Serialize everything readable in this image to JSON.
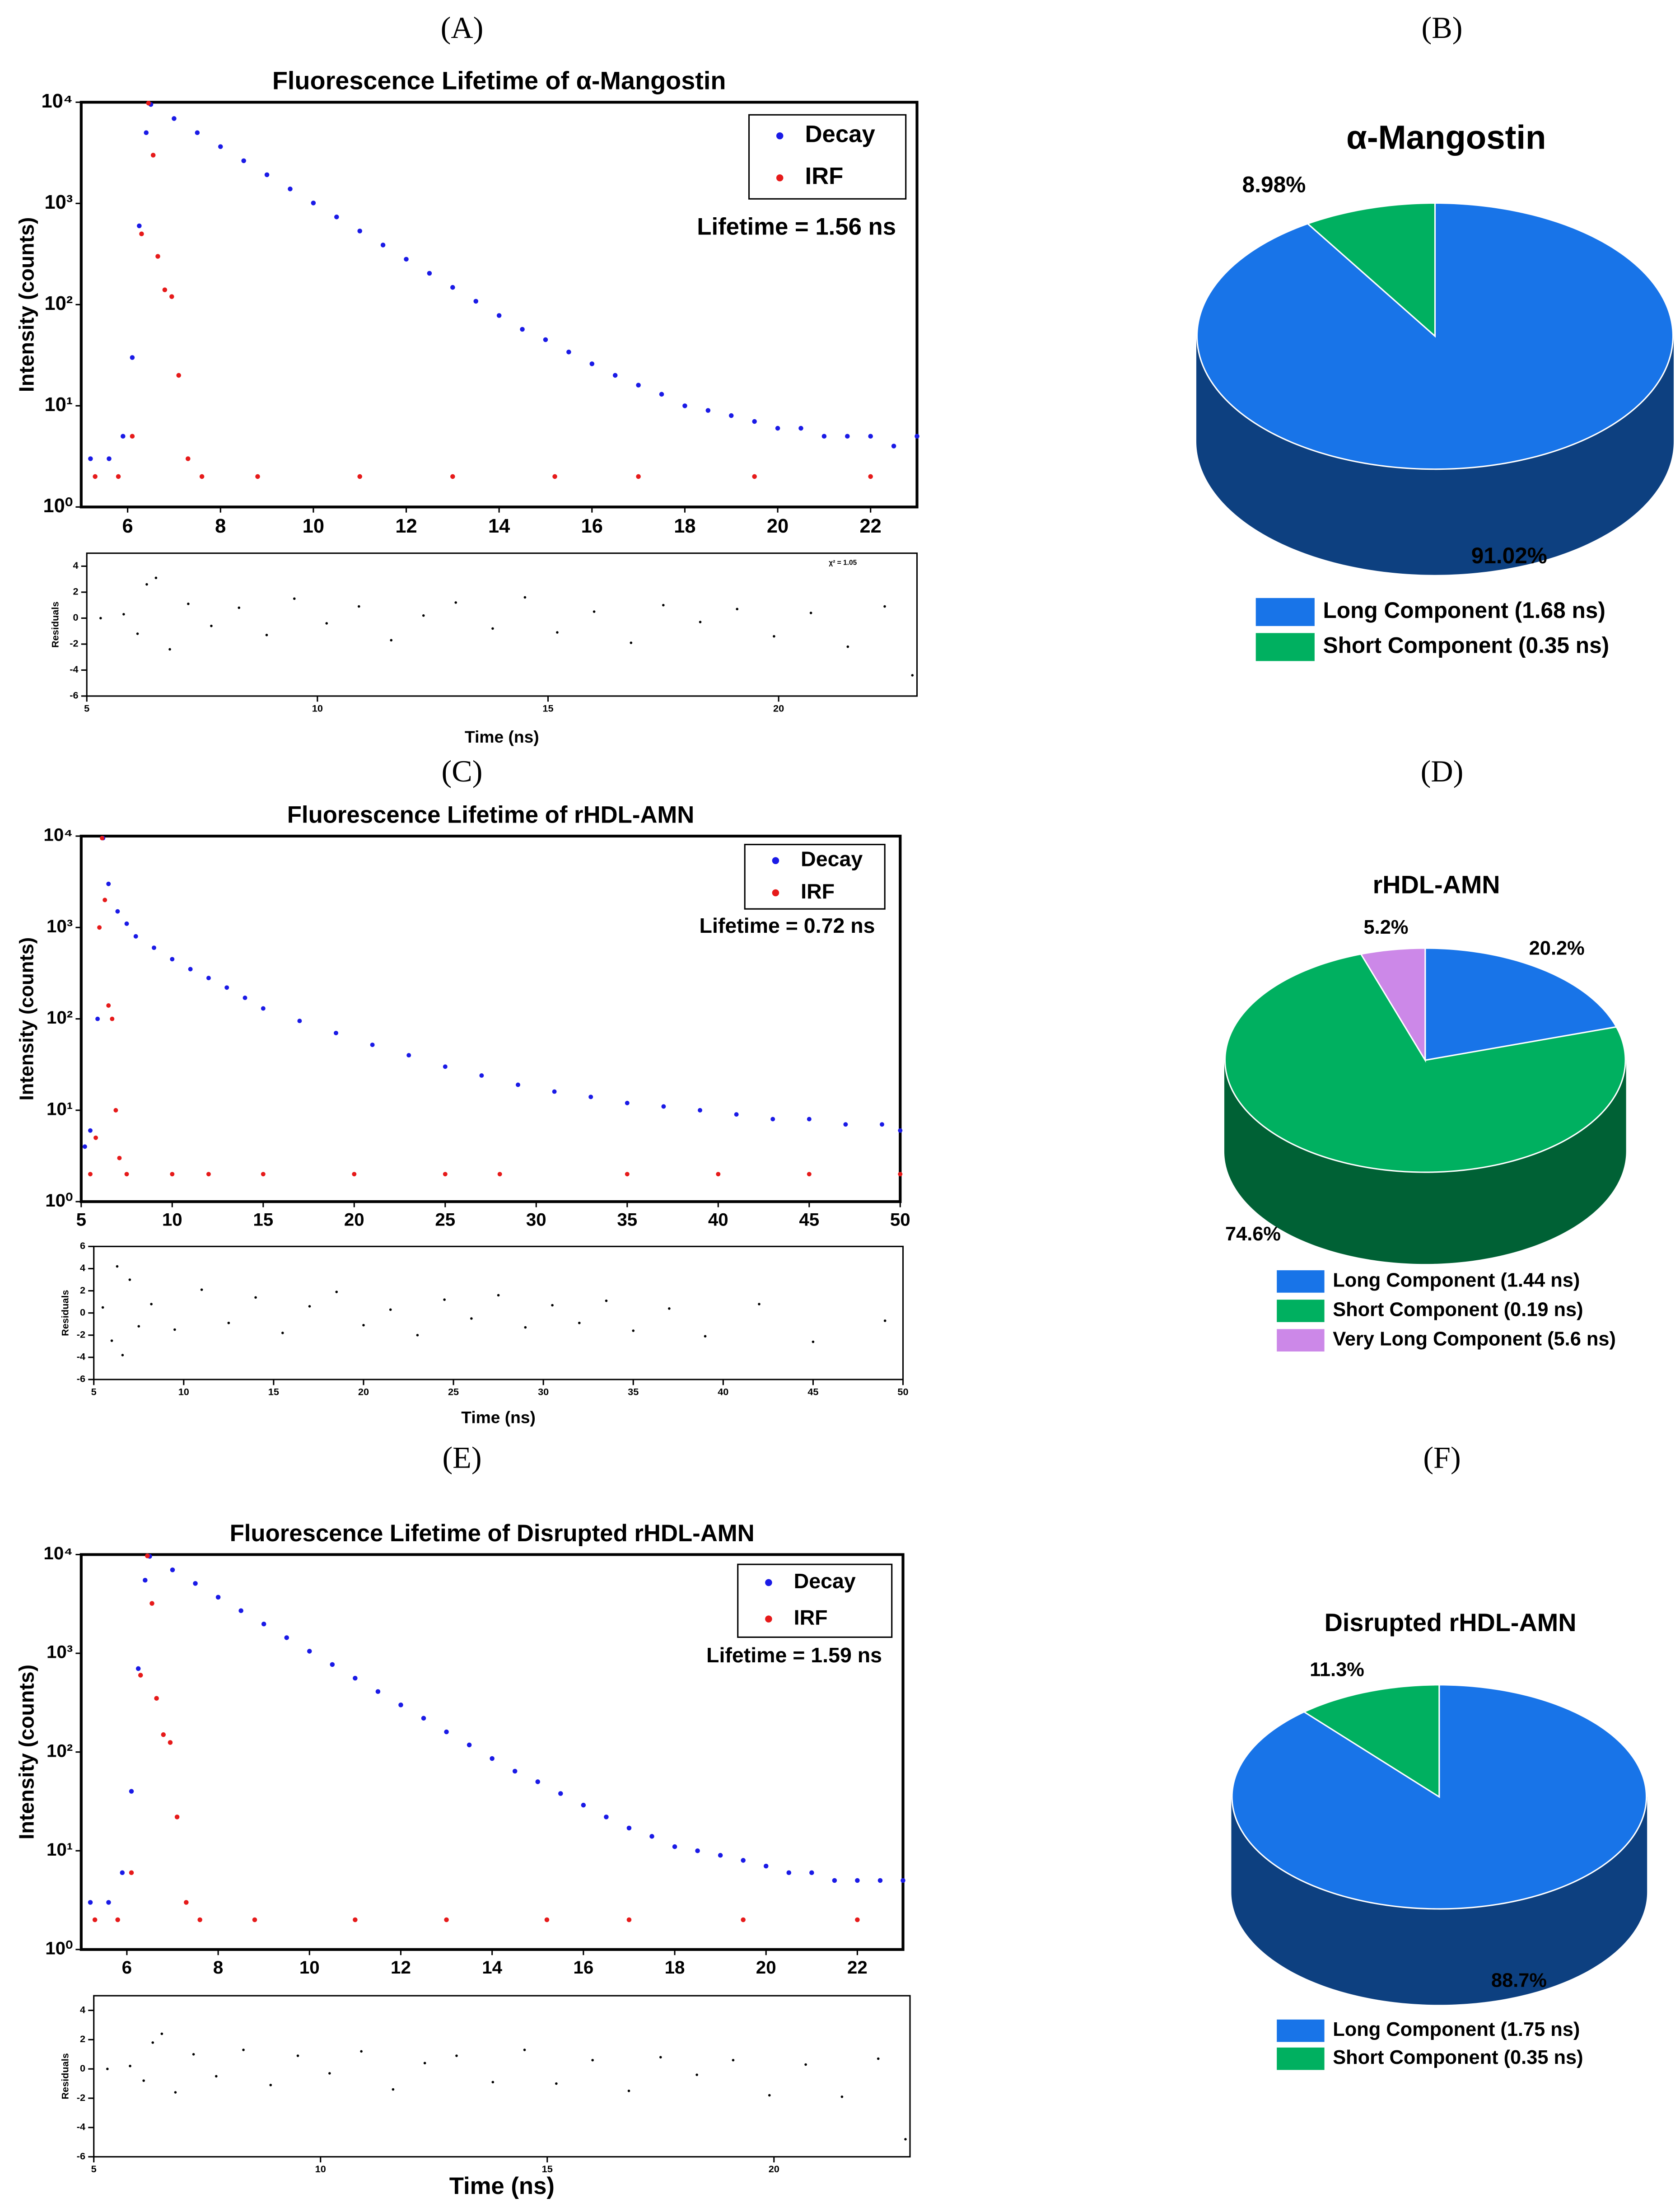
{
  "chart_data": [
    {
      "type": "scatter",
      "panel_label": "(A)",
      "title": "Fluorescence Lifetime of α-Mangostin",
      "y_label": "Intensity (counts)",
      "log_y": true,
      "xlim": [
        5,
        23
      ],
      "xticks": [
        6,
        8,
        10,
        12,
        14,
        16,
        18,
        20,
        22
      ],
      "ylim": [
        1,
        10000
      ],
      "yticks": [
        {
          "value": 1,
          "label": "10⁰"
        },
        {
          "value": 10,
          "label": "10¹"
        },
        {
          "value": 100,
          "label": "10²"
        },
        {
          "value": 1000,
          "label": "10³"
        },
        {
          "value": 10000,
          "label": "10⁴"
        }
      ],
      "legend": "upper right",
      "annotation": "Lifetime = 1.56 ns",
      "series": [
        {
          "name": "Decay",
          "color": "#1a1ae6",
          "x": [
            5.2,
            5.6,
            5.9,
            6.1,
            6.25,
            6.4,
            6.5,
            7,
            7.5,
            8,
            8.5,
            9,
            9.5,
            10,
            10.5,
            11,
            11.5,
            12,
            12.5,
            13,
            13.5,
            14,
            14.5,
            15,
            15.5,
            16,
            16.5,
            17,
            17.5,
            18,
            18.5,
            19,
            19.5,
            20,
            20.5,
            21,
            21.5,
            22,
            22.5,
            23
          ],
          "values": [
            3,
            3,
            5,
            30,
            600,
            5000,
            9500,
            6900,
            5000,
            3640,
            2640,
            1920,
            1390,
            1010,
            735,
            534,
            388,
            281,
            204,
            148,
            108,
            78,
            57,
            45,
            34,
            26,
            20,
            16,
            13,
            10,
            9,
            8,
            7,
            6,
            6,
            5,
            5,
            5,
            4,
            5
          ]
        },
        {
          "name": "IRF",
          "color": "#e61a1a",
          "x": [
            5.3,
            5.8,
            6.1,
            6.3,
            6.45,
            6.55,
            6.65,
            6.8,
            6.95,
            7.1,
            7.3,
            7.6,
            8.8,
            11,
            13,
            15.2,
            17,
            19.5,
            22
          ],
          "values": [
            2,
            2,
            5,
            500,
            9800,
            3000,
            300,
            140,
            120,
            20,
            3,
            2,
            2,
            2,
            2,
            2,
            2,
            2,
            2
          ]
        }
      ]
    },
    {
      "type": "scatter",
      "y_label": "Residuals",
      "x_label": "Time (ns)",
      "annotation": "χ² = 1.05",
      "xlim": [
        5,
        23
      ],
      "xticks": [
        5,
        10,
        15,
        20
      ],
      "ylim": [
        -6,
        5
      ],
      "yticks": [
        -6,
        -4,
        -2,
        0,
        2,
        4
      ],
      "color": "#000000",
      "x": [
        5.3,
        5.8,
        6.1,
        6.3,
        6.5,
        6.8,
        7.2,
        7.7,
        8.3,
        8.9,
        9.5,
        10.2,
        10.9,
        11.6,
        12.3,
        13.0,
        13.8,
        14.5,
        15.2,
        16.0,
        16.8,
        17.5,
        18.3,
        19.1,
        19.9,
        20.7,
        21.5,
        22.3,
        22.9
      ],
      "values": [
        0,
        0.3,
        -1.2,
        2.6,
        3.1,
        -2.4,
        1.1,
        -0.6,
        0.8,
        -1.3,
        1.5,
        -0.4,
        0.9,
        -1.7,
        0.2,
        1.2,
        -0.8,
        1.6,
        -1.1,
        0.5,
        -1.9,
        1.0,
        -0.3,
        0.7,
        -1.4,
        0.4,
        -2.2,
        0.9,
        -4.4
      ]
    },
    {
      "type": "pie",
      "panel_label": "(B)",
      "title": "α-Mangostin",
      "categories": [
        "Long Component (1.68 ns)",
        "Short Component (0.35 ns)"
      ],
      "values": [
        91.02,
        8.98
      ],
      "value_labels": [
        "91.02%",
        "8.98%"
      ],
      "colors": [
        "#1874e8",
        "#00b060"
      ]
    },
    {
      "type": "scatter",
      "panel_label": "(C)",
      "title": "Fluorescence Lifetime of rHDL-AMN",
      "y_label": "Intensity (counts)",
      "log_y": true,
      "xlim": [
        5,
        50
      ],
      "xticks": [
        5,
        10,
        15,
        20,
        25,
        30,
        35,
        40,
        45,
        50
      ],
      "ylim": [
        1,
        10000
      ],
      "yticks": [
        {
          "value": 1,
          "label": "10⁰"
        },
        {
          "value": 10,
          "label": "10¹"
        },
        {
          "value": 100,
          "label": "10²"
        },
        {
          "value": 1000,
          "label": "10³"
        },
        {
          "value": 10000,
          "label": "10⁴"
        }
      ],
      "legend": "upper right",
      "annotation": "Lifetime = 0.72 ns",
      "series": [
        {
          "name": "Decay",
          "color": "#1a1ae6",
          "x": [
            5.2,
            5.5,
            5.9,
            6.2,
            6.5,
            7,
            7.5,
            8,
            9,
            10,
            11,
            12,
            13,
            14,
            15,
            17,
            19,
            21,
            23,
            25,
            27,
            29,
            31,
            33,
            35,
            37,
            39,
            41,
            43,
            45,
            47,
            49,
            50
          ],
          "values": [
            4,
            6,
            100,
            9500,
            3000,
            1500,
            1100,
            800,
            600,
            450,
            350,
            280,
            220,
            170,
            130,
            95,
            70,
            52,
            40,
            30,
            24,
            19,
            16,
            14,
            12,
            11,
            10,
            9,
            8,
            8,
            7,
            7,
            6
          ]
        },
        {
          "name": "IRF",
          "color": "#e61a1a",
          "x": [
            5.5,
            5.8,
            6.0,
            6.15,
            6.3,
            6.5,
            6.7,
            6.9,
            7.1,
            7.5,
            10,
            12,
            15,
            20,
            25,
            28,
            35,
            40,
            45,
            50
          ],
          "values": [
            2,
            5,
            1000,
            9500,
            2000,
            140,
            100,
            10,
            3,
            2,
            2,
            2,
            2,
            2,
            2,
            2,
            2,
            2,
            2,
            2
          ]
        }
      ]
    },
    {
      "type": "scatter",
      "y_label": "Residuals",
      "x_label": "Time (ns)",
      "xlim": [
        5,
        50
      ],
      "xticks": [
        5,
        10,
        15,
        20,
        25,
        30,
        35,
        40,
        45,
        50
      ],
      "ylim": [
        -6,
        6
      ],
      "yticks": [
        -6,
        -4,
        -2,
        0,
        2,
        4,
        6
      ],
      "color": "#000000",
      "x": [
        5.5,
        6.0,
        6.3,
        6.6,
        7.0,
        7.5,
        8.2,
        9.5,
        11,
        12.5,
        14,
        15.5,
        17,
        18.5,
        20,
        21.5,
        23,
        24.5,
        26,
        27.5,
        29,
        30.5,
        32,
        33.5,
        35,
        37,
        39,
        42,
        45,
        49
      ],
      "values": [
        0.5,
        -2.5,
        4.2,
        -3.8,
        3.0,
        -1.2,
        0.8,
        -1.5,
        2.1,
        -0.9,
        1.4,
        -1.8,
        0.6,
        1.9,
        -1.1,
        0.3,
        -2.0,
        1.2,
        -0.5,
        1.6,
        -1.3,
        0.7,
        -0.9,
        1.1,
        -1.6,
        0.4,
        -2.1,
        0.8,
        -2.6,
        -0.7
      ]
    },
    {
      "type": "pie",
      "panel_label": "(D)",
      "title": "rHDL-AMN",
      "categories": [
        "Long Component (1.44 ns)",
        "Short Component (0.19 ns)",
        "Very Long Component (5.6 ns)"
      ],
      "values": [
        20.2,
        74.6,
        5.2
      ],
      "value_labels": [
        "20.2%",
        "74.6%",
        "5.2%"
      ],
      "colors": [
        "#1874e8",
        "#00b060",
        "#cc88e8"
      ]
    },
    {
      "type": "scatter",
      "panel_label": "(E)",
      "title": "Fluorescence Lifetime of Disrupted rHDL-AMN",
      "y_label": "Intensity (counts)",
      "log_y": true,
      "xlim": [
        5,
        23
      ],
      "xticks": [
        6,
        8,
        10,
        12,
        14,
        16,
        18,
        20,
        22
      ],
      "ylim": [
        1,
        10000
      ],
      "yticks": [
        {
          "value": 1,
          "label": "10⁰"
        },
        {
          "value": 10,
          "label": "10¹"
        },
        {
          "value": 100,
          "label": "10²"
        },
        {
          "value": 1000,
          "label": "10³"
        },
        {
          "value": 10000,
          "label": "10⁴"
        }
      ],
      "legend": "upper right",
      "annotation": "Lifetime = 1.59 ns",
      "series": [
        {
          "name": "Decay",
          "color": "#1a1ae6",
          "x": [
            5.2,
            5.6,
            5.9,
            6.1,
            6.25,
            6.4,
            6.5,
            7,
            7.5,
            8,
            8.5,
            9,
            9.5,
            10,
            10.5,
            11,
            11.5,
            12,
            12.5,
            13,
            13.5,
            14,
            14.5,
            15,
            15.5,
            16,
            16.5,
            17,
            17.5,
            18,
            18.5,
            19,
            19.5,
            20,
            20.5,
            21,
            21.5,
            22,
            22.5,
            23
          ],
          "values": [
            3,
            3,
            6,
            40,
            700,
            5500,
            9600,
            7000,
            5100,
            3700,
            2700,
            1980,
            1440,
            1050,
            770,
            560,
            410,
            300,
            220,
            160,
            118,
            86,
            64,
            50,
            38,
            29,
            22,
            17,
            14,
            11,
            10,
            9,
            8,
            7,
            6,
            6,
            5,
            5,
            5,
            5
          ]
        },
        {
          "name": "IRF",
          "color": "#e61a1a",
          "x": [
            5.3,
            5.8,
            6.1,
            6.3,
            6.45,
            6.55,
            6.65,
            6.8,
            6.95,
            7.1,
            7.3,
            7.6,
            8.8,
            11,
            13,
            15.2,
            17,
            19.5,
            22
          ],
          "values": [
            2,
            2,
            6,
            600,
            9700,
            3200,
            350,
            150,
            125,
            22,
            3,
            2,
            2,
            2,
            2,
            2,
            2,
            2,
            2
          ]
        }
      ]
    },
    {
      "type": "scatter",
      "y_label": "Residuals",
      "x_label": "Time (ns)",
      "xlim": [
        5,
        23
      ],
      "xticks": [
        5,
        10,
        15,
        20
      ],
      "ylim": [
        -6,
        5
      ],
      "yticks": [
        -6,
        -4,
        -2,
        0,
        2,
        4
      ],
      "color": "#000000",
      "x": [
        5.3,
        5.8,
        6.1,
        6.3,
        6.5,
        6.8,
        7.2,
        7.7,
        8.3,
        8.9,
        9.5,
        10.2,
        10.9,
        11.6,
        12.3,
        13.0,
        13.8,
        14.5,
        15.2,
        16.0,
        16.8,
        17.5,
        18.3,
        19.1,
        19.9,
        20.7,
        21.5,
        22.3,
        22.9
      ],
      "values": [
        0,
        0.2,
        -0.8,
        1.8,
        2.4,
        -1.6,
        1.0,
        -0.5,
        1.3,
        -1.1,
        0.9,
        -0.3,
        1.2,
        -1.4,
        0.4,
        0.9,
        -0.9,
        1.3,
        -1.0,
        0.6,
        -1.5,
        0.8,
        -0.4,
        0.6,
        -1.8,
        0.3,
        -1.9,
        0.7,
        -4.8
      ]
    },
    {
      "type": "pie",
      "panel_label": "(F)",
      "title": "Disrupted rHDL-AMN",
      "categories": [
        "Long Component (1.75 ns)",
        "Short Component (0.35 ns)"
      ],
      "values": [
        88.7,
        11.3
      ],
      "value_labels": [
        "88.7%",
        "11.3%"
      ],
      "colors": [
        "#1874e8",
        "#00b060"
      ]
    }
  ]
}
